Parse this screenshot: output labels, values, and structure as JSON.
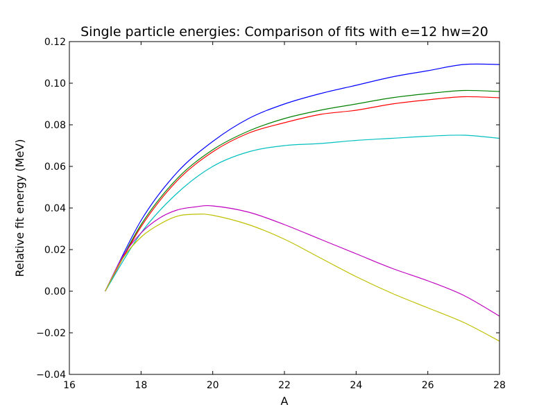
{
  "chart_data": {
    "type": "line",
    "title": "Single particle energies: Comparison of fits with e=12 hw=20",
    "xlabel": "A",
    "ylabel": "Relative fit energy (MeV)",
    "xlim": [
      16,
      28
    ],
    "ylim": [
      -0.04,
      0.12
    ],
    "xticks": [
      16,
      18,
      20,
      22,
      24,
      26,
      28
    ],
    "xtick_labels": [
      "16",
      "18",
      "20",
      "22",
      "24",
      "26",
      "28"
    ],
    "yticks": [
      -0.04,
      -0.02,
      0.0,
      0.02,
      0.04,
      0.06,
      0.08,
      0.1,
      0.12
    ],
    "ytick_labels": [
      "−0.04",
      "−0.02",
      "0.00",
      "0.02",
      "0.04",
      "0.06",
      "0.08",
      "0.10",
      "0.12"
    ],
    "grid": false,
    "legend": "none",
    "series": [
      {
        "color": "#0000ff",
        "x": [
          17,
          18,
          19,
          20,
          21,
          22,
          23,
          24,
          25,
          26,
          27,
          28
        ],
        "y": [
          0.0,
          0.034,
          0.057,
          0.072,
          0.083,
          0.09,
          0.095,
          0.099,
          0.103,
          0.106,
          0.109,
          0.109
        ]
      },
      {
        "color": "#008000",
        "x": [
          17,
          18,
          19,
          20,
          21,
          22,
          23,
          24,
          25,
          26,
          27,
          28
        ],
        "y": [
          0.0,
          0.032,
          0.054,
          0.068,
          0.077,
          0.083,
          0.087,
          0.09,
          0.093,
          0.095,
          0.0965,
          0.096
        ]
      },
      {
        "color": "#ff0000",
        "x": [
          17,
          18,
          19,
          20,
          21,
          22,
          23,
          24,
          25,
          26,
          27,
          28
        ],
        "y": [
          0.0,
          0.031,
          0.053,
          0.067,
          0.076,
          0.081,
          0.085,
          0.087,
          0.09,
          0.092,
          0.0935,
          0.093
        ]
      },
      {
        "color": "#00bfbf",
        "x": [
          17,
          18,
          19,
          20,
          21,
          22,
          23,
          24,
          25,
          26,
          27,
          28
        ],
        "y": [
          0.0,
          0.028,
          0.047,
          0.06,
          0.067,
          0.07,
          0.071,
          0.0725,
          0.0735,
          0.0745,
          0.075,
          0.0735
        ]
      },
      {
        "color": "#bf00bf",
        "x": [
          17,
          17.5,
          18,
          18.5,
          19,
          19.5,
          20,
          21,
          22,
          23,
          24,
          25,
          26,
          27,
          28
        ],
        "y": [
          0.0,
          0.017,
          0.028,
          0.035,
          0.039,
          0.0405,
          0.041,
          0.038,
          0.032,
          0.025,
          0.018,
          0.011,
          0.005,
          -0.002,
          -0.012
        ]
      },
      {
        "color": "#bfbf00",
        "x": [
          17,
          17.5,
          18,
          18.5,
          19,
          19.5,
          20,
          21,
          22,
          23,
          24,
          25,
          26,
          27,
          28
        ],
        "y": [
          0.0,
          0.016,
          0.026,
          0.032,
          0.036,
          0.037,
          0.0365,
          0.032,
          0.025,
          0.016,
          0.007,
          -0.001,
          -0.008,
          -0.015,
          -0.024
        ]
      }
    ]
  }
}
